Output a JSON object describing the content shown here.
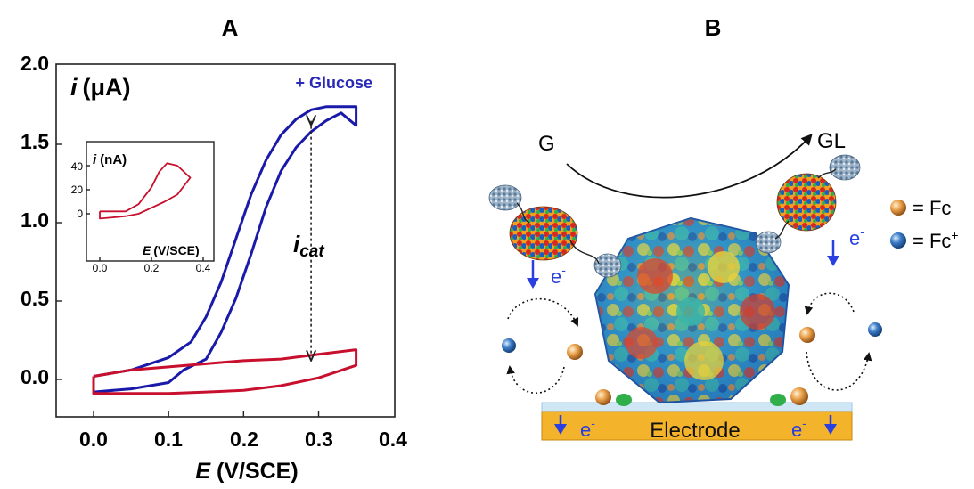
{
  "panel_a": {
    "label": "A",
    "y_axis_label_symbol": "i",
    "y_axis_label_unit": "(μA)",
    "x_axis_label_symbol": "E",
    "x_axis_label_unit": "(V/SCE)",
    "legend": "+ Glucose",
    "icat_symbol": "i",
    "icat_subscript": "cat",
    "y_ticks": [
      "2.0",
      "1.5",
      "1.0",
      "0.5",
      "0.0"
    ],
    "x_ticks": [
      "0.0",
      "0.1",
      "0.2",
      "0.3",
      "0.4"
    ],
    "inset": {
      "y_label_symbol": "i",
      "y_label_unit": "(nA)",
      "x_label_symbol": "E",
      "x_label_unit": "(V/SCE)",
      "y_ticks": [
        "40",
        "20",
        "0"
      ],
      "x_ticks": [
        "0.0",
        "0.2",
        "0.4"
      ]
    }
  },
  "panel_b": {
    "label": "B",
    "substrate": "G",
    "product": "GL",
    "electron": "e",
    "electron_charge": "-",
    "legend_fc": "= Fc",
    "legend_fcplus": "= Fc",
    "legend_fcplus_sup": "+",
    "electrode": "Electrode"
  },
  "colors": {
    "glucose_curve": "#1a1aaa",
    "blank_curve": "#c8102e",
    "electron_arrow": "#2a3fe0",
    "electrode": "#f3b32a",
    "fc": "#d9822b",
    "fcplus": "#2f6db5"
  },
  "chart_data": {
    "type": "line",
    "xlabel": "E (V/SCE)",
    "ylabel": "i (μA)",
    "xlim": [
      -0.05,
      0.4
    ],
    "ylim": [
      -0.2,
      2.0
    ],
    "grid": false,
    "legend": "top-right",
    "series": [
      {
        "name": "+ Glucose",
        "color": "#1a1aaa",
        "x": [
          0.0,
          0.05,
          0.1,
          0.13,
          0.15,
          0.17,
          0.19,
          0.21,
          0.23,
          0.25,
          0.27,
          0.29,
          0.31,
          0.33,
          0.35,
          0.35,
          0.33,
          0.31,
          0.29,
          0.27,
          0.25,
          0.23,
          0.21,
          0.19,
          0.17,
          0.15,
          0.12,
          0.1,
          0.05,
          0.0,
          0.0
        ],
        "y": [
          0.02,
          0.06,
          0.14,
          0.24,
          0.4,
          0.62,
          0.9,
          1.18,
          1.4,
          1.56,
          1.66,
          1.72,
          1.74,
          1.74,
          1.74,
          1.62,
          1.7,
          1.65,
          1.58,
          1.48,
          1.33,
          1.1,
          0.8,
          0.52,
          0.3,
          0.13,
          0.06,
          -0.02,
          -0.06,
          -0.08,
          0.02
        ]
      },
      {
        "name": "",
        "color": "#c8102e",
        "x": [
          0.0,
          0.05,
          0.1,
          0.15,
          0.2,
          0.25,
          0.3,
          0.35,
          0.35,
          0.3,
          0.25,
          0.2,
          0.15,
          0.1,
          0.05,
          0.0,
          0.0
        ],
        "y": [
          0.02,
          0.06,
          0.08,
          0.1,
          0.12,
          0.13,
          0.16,
          0.19,
          0.09,
          0.01,
          -0.04,
          -0.07,
          -0.08,
          -0.09,
          -0.09,
          -0.09,
          0.02
        ]
      }
    ],
    "inset": {
      "xlabel": "E (V/SCE)",
      "ylabel": "i (nA)",
      "xlim": [
        -0.05,
        0.4
      ],
      "ylim": [
        -15,
        50
      ],
      "series": [
        {
          "name": "",
          "color": "#c8102e",
          "x": [
            0.0,
            0.05,
            0.1,
            0.15,
            0.2,
            0.23,
            0.26,
            0.3,
            0.35,
            0.3,
            0.25,
            0.2,
            0.15,
            0.1,
            0.05,
            0.0,
            0.0
          ],
          "y": [
            2,
            2,
            2,
            8,
            22,
            35,
            42,
            40,
            30,
            16,
            10,
            5,
            0,
            -2,
            -3,
            -4,
            2
          ]
        }
      ]
    },
    "annotation": {
      "x": 0.29,
      "y_top": 1.65,
      "y_bottom": 0.15,
      "label": "i_cat"
    }
  }
}
